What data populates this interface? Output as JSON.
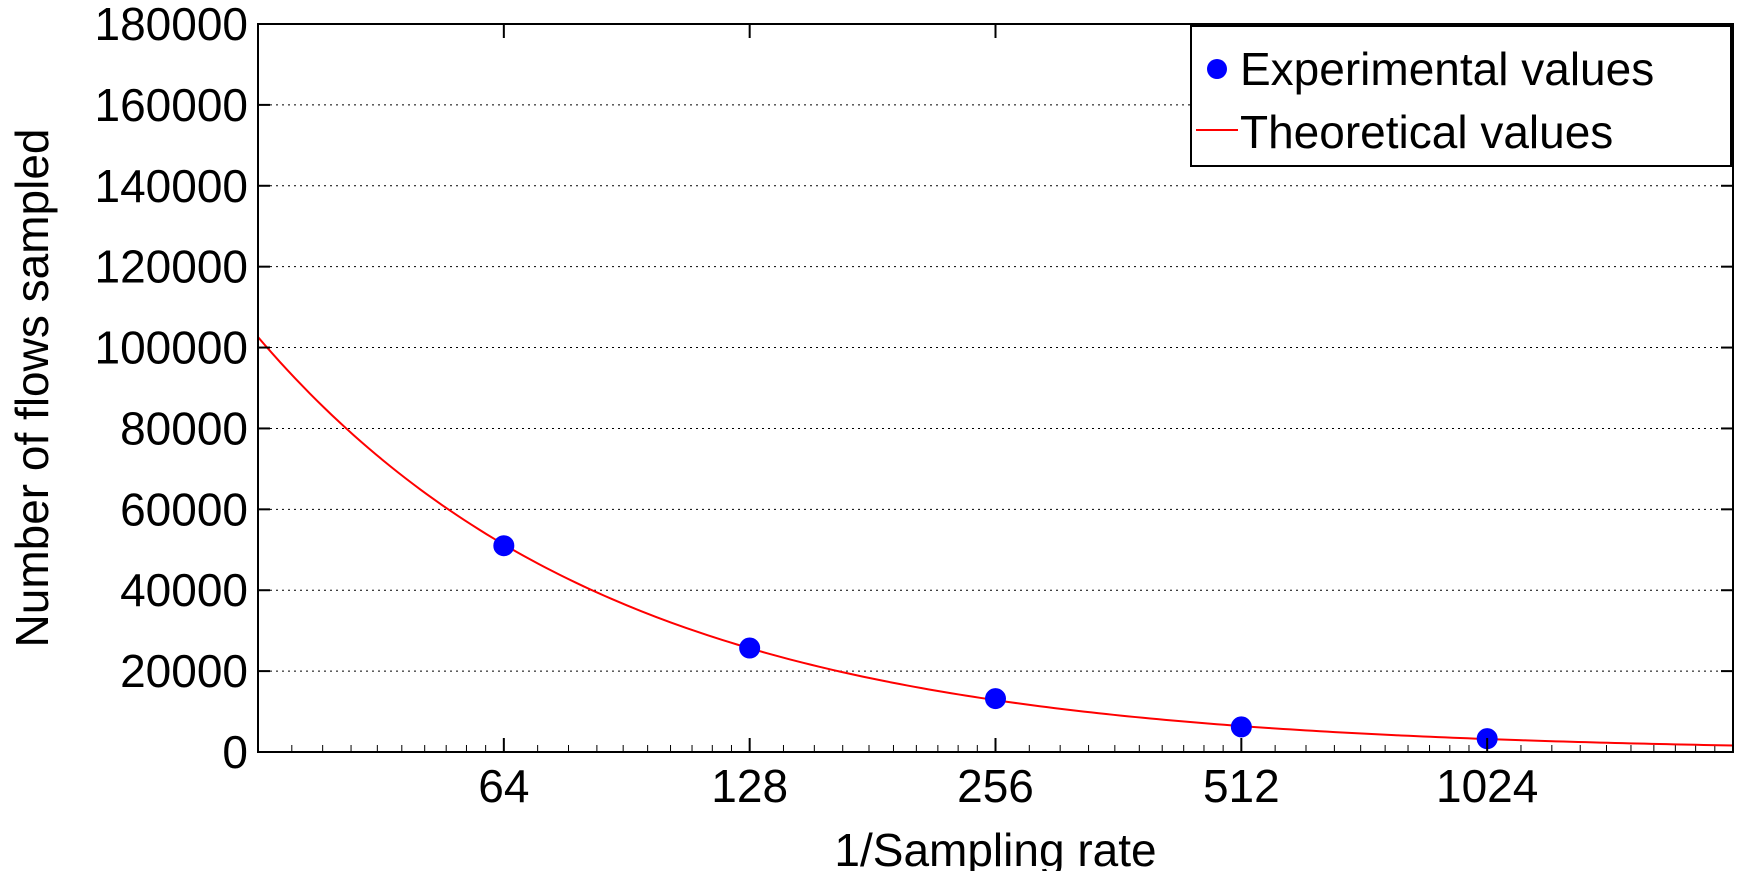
{
  "chart_data": {
    "type": "scatter",
    "title": "",
    "xlabel": "1/Sampling rate",
    "ylabel": "Number of flows sampled",
    "x_scale": "log2",
    "xlim": [
      32,
      2048
    ],
    "ylim": [
      0,
      180000
    ],
    "x_ticks": [
      64,
      128,
      256,
      512,
      1024
    ],
    "y_ticks": [
      0,
      20000,
      40000,
      60000,
      80000,
      100000,
      120000,
      140000,
      160000,
      180000
    ],
    "grid": "y-dotted",
    "legend_position": "top-right",
    "series": [
      {
        "name": "Experimental values",
        "kind": "markers",
        "color": "#0000ff",
        "x": [
          64,
          128,
          256,
          512,
          1024
        ],
        "y": [
          51000,
          25700,
          13200,
          6200,
          3300
        ]
      },
      {
        "name": "Theoretical values",
        "kind": "line",
        "color": "#ff0000",
        "formula_numerator": 3283000,
        "x": [
          32,
          2048
        ]
      }
    ]
  }
}
